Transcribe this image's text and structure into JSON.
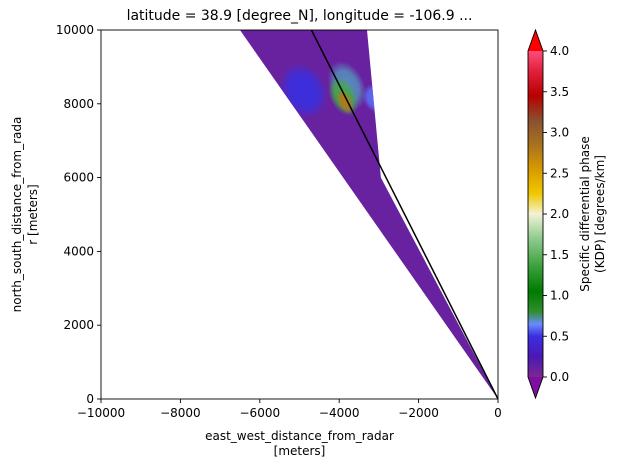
{
  "chart_data": {
    "type": "heatmap",
    "title": "latitude = 38.9 [degree_N], longitude = -106.9 ...",
    "xlabel_lines": [
      "east_west_distance_from_radar",
      "[meters]"
    ],
    "ylabel_lines": [
      "north_south_distance_from_rada",
      "r [meters]"
    ],
    "xlim": [
      -10000,
      0
    ],
    "ylim": [
      0,
      10000
    ],
    "x_ticks": [
      -10000,
      -8000,
      -6000,
      -4000,
      -2000,
      0
    ],
    "x_tick_labels": [
      "−10000",
      "−8000",
      "−6000",
      "−4000",
      "−2000",
      "0"
    ],
    "y_ticks": [
      0,
      2000,
      4000,
      6000,
      8000,
      10000
    ],
    "y_tick_labels": [
      "0",
      "2000",
      "4000",
      "6000",
      "8000",
      "10000"
    ],
    "grid": false,
    "wedge": {
      "apex": [
        0,
        0
      ],
      "left_edge_top": [
        -6500,
        10000
      ],
      "right_edge_top": [
        -3300,
        10000
      ],
      "right_edge_lower": [
        -2950,
        6000
      ],
      "background_value": 0.1
    },
    "line": {
      "x": [
        0,
        -4700
      ],
      "y": [
        0,
        10000
      ],
      "color": "#000000"
    },
    "blobs": [
      {
        "x": -4900,
        "y": 8350,
        "value": 0.5
      },
      {
        "x": -3100,
        "y": 8150,
        "value": 0.6
      },
      {
        "x": -5100,
        "y": 5700,
        "value": 0.3
      },
      {
        "x": -3800,
        "y": 8500,
        "value": 0.7
      },
      {
        "x": -3900,
        "y": 8200,
        "value": 1.4
      },
      {
        "x": -3850,
        "y": 8050,
        "value": 2.8
      }
    ],
    "colorbar": {
      "label_lines": [
        "Specific differential phase",
        "(KDP) [degrees/km]"
      ],
      "min": 0.0,
      "max": 4.0,
      "ticks": [
        0.0,
        0.5,
        1.0,
        1.5,
        2.0,
        2.5,
        3.0,
        3.5,
        4.0
      ],
      "tick_labels": [
        "0.0",
        "0.5",
        "1.0",
        "1.5",
        "2.0",
        "2.5",
        "3.0",
        "3.5",
        "4.0"
      ],
      "extend": "both",
      "under_color": "#7d0fa1",
      "over_color": "#ff0000",
      "stops": [
        {
          "v": 0.0,
          "color": "#7b2891"
        },
        {
          "v": 0.25,
          "color": "#4b18b5"
        },
        {
          "v": 0.5,
          "color": "#3a2fe0"
        },
        {
          "v": 0.65,
          "color": "#6a8cff"
        },
        {
          "v": 0.8,
          "color": "#2f8f2f"
        },
        {
          "v": 1.05,
          "color": "#007a00"
        },
        {
          "v": 1.35,
          "color": "#3aa03a"
        },
        {
          "v": 1.7,
          "color": "#8fcb8f"
        },
        {
          "v": 2.0,
          "color": "#f3f3d4"
        },
        {
          "v": 2.25,
          "color": "#f0c800"
        },
        {
          "v": 2.55,
          "color": "#d89a00"
        },
        {
          "v": 2.85,
          "color": "#a8721f"
        },
        {
          "v": 3.15,
          "color": "#8a5030"
        },
        {
          "v": 3.45,
          "color": "#b80000"
        },
        {
          "v": 3.75,
          "color": "#e0203a"
        },
        {
          "v": 4.0,
          "color": "#ff4d7a"
        }
      ]
    }
  }
}
